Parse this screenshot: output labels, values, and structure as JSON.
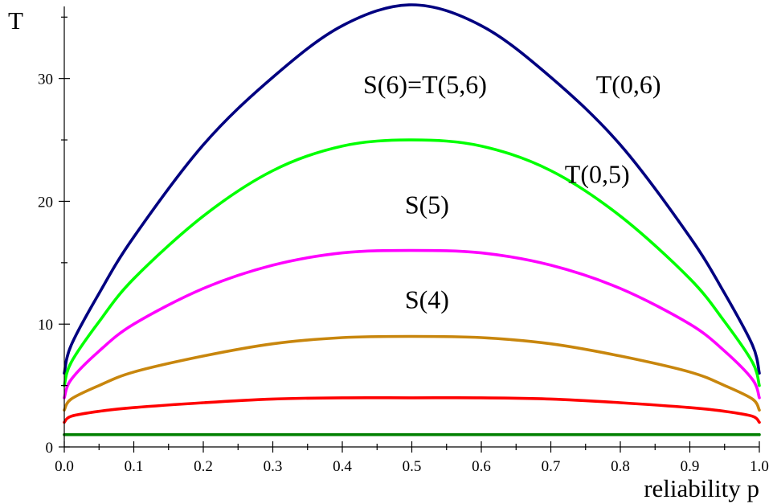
{
  "chart_data": {
    "type": "line",
    "title": "",
    "xlabel": "reliability p",
    "ylabel": "T",
    "xlim": [
      0,
      1
    ],
    "ylim": [
      0,
      36
    ],
    "grid": false,
    "legend": "none",
    "x_ticks": [
      "0.0",
      "0.1",
      "0.2",
      "0.3",
      "0.4",
      "0.5",
      "0.6",
      "0.7",
      "0.8",
      "0.9",
      "1.0"
    ],
    "y_ticks": [
      "0",
      "10",
      "20",
      "30"
    ],
    "x": [
      0.0,
      0.01,
      0.05,
      0.1,
      0.2,
      0.3,
      0.4,
      0.5,
      0.6,
      0.7,
      0.8,
      0.9,
      0.95,
      0.99,
      1.0
    ],
    "series": [
      {
        "color": "#000080",
        "values": [
          6,
          8.3,
          12.5,
          17.1,
          24.6,
          30.1,
          34.3,
          36.0,
          34.3,
          30.1,
          24.6,
          17.1,
          12.5,
          8.3,
          6
        ]
      },
      {
        "color": "#00ff00",
        "values": [
          5,
          6.9,
          10.2,
          13.7,
          18.8,
          22.5,
          24.5,
          25.0,
          24.5,
          22.5,
          18.8,
          13.7,
          10.2,
          6.9,
          5
        ]
      },
      {
        "color": "#ff00ff",
        "values": [
          4,
          5.5,
          7.8,
          10.0,
          12.9,
          14.8,
          15.8,
          16.0,
          15.8,
          14.8,
          12.9,
          10.0,
          7.8,
          5.5,
          4
        ]
      },
      {
        "color": "#c8860d",
        "values": [
          3,
          3.9,
          5.0,
          6.1,
          7.4,
          8.4,
          8.9,
          9.0,
          8.9,
          8.4,
          7.4,
          6.1,
          5.0,
          3.9,
          3
        ]
      },
      {
        "color": "#ff0000",
        "values": [
          2,
          2.5,
          2.9,
          3.2,
          3.6,
          3.9,
          4.0,
          4.0,
          4.0,
          3.9,
          3.6,
          3.2,
          2.9,
          2.5,
          2
        ]
      },
      {
        "color": "#008000",
        "values": [
          1,
          1,
          1,
          1,
          1,
          1,
          1,
          1,
          1,
          1,
          1,
          1,
          1,
          1,
          1
        ]
      }
    ],
    "annotations": [
      {
        "text": "S(6)=T(5,6)",
        "x": 0.43,
        "y": 28.8
      },
      {
        "text": "T(0,6)",
        "x": 0.765,
        "y": 28.8
      },
      {
        "text": "T(0,5)",
        "x": 0.72,
        "y": 21.5
      },
      {
        "text": "S(5)",
        "x": 0.49,
        "y": 19.0
      },
      {
        "text": "S(4)",
        "x": 0.49,
        "y": 11.3
      }
    ]
  }
}
